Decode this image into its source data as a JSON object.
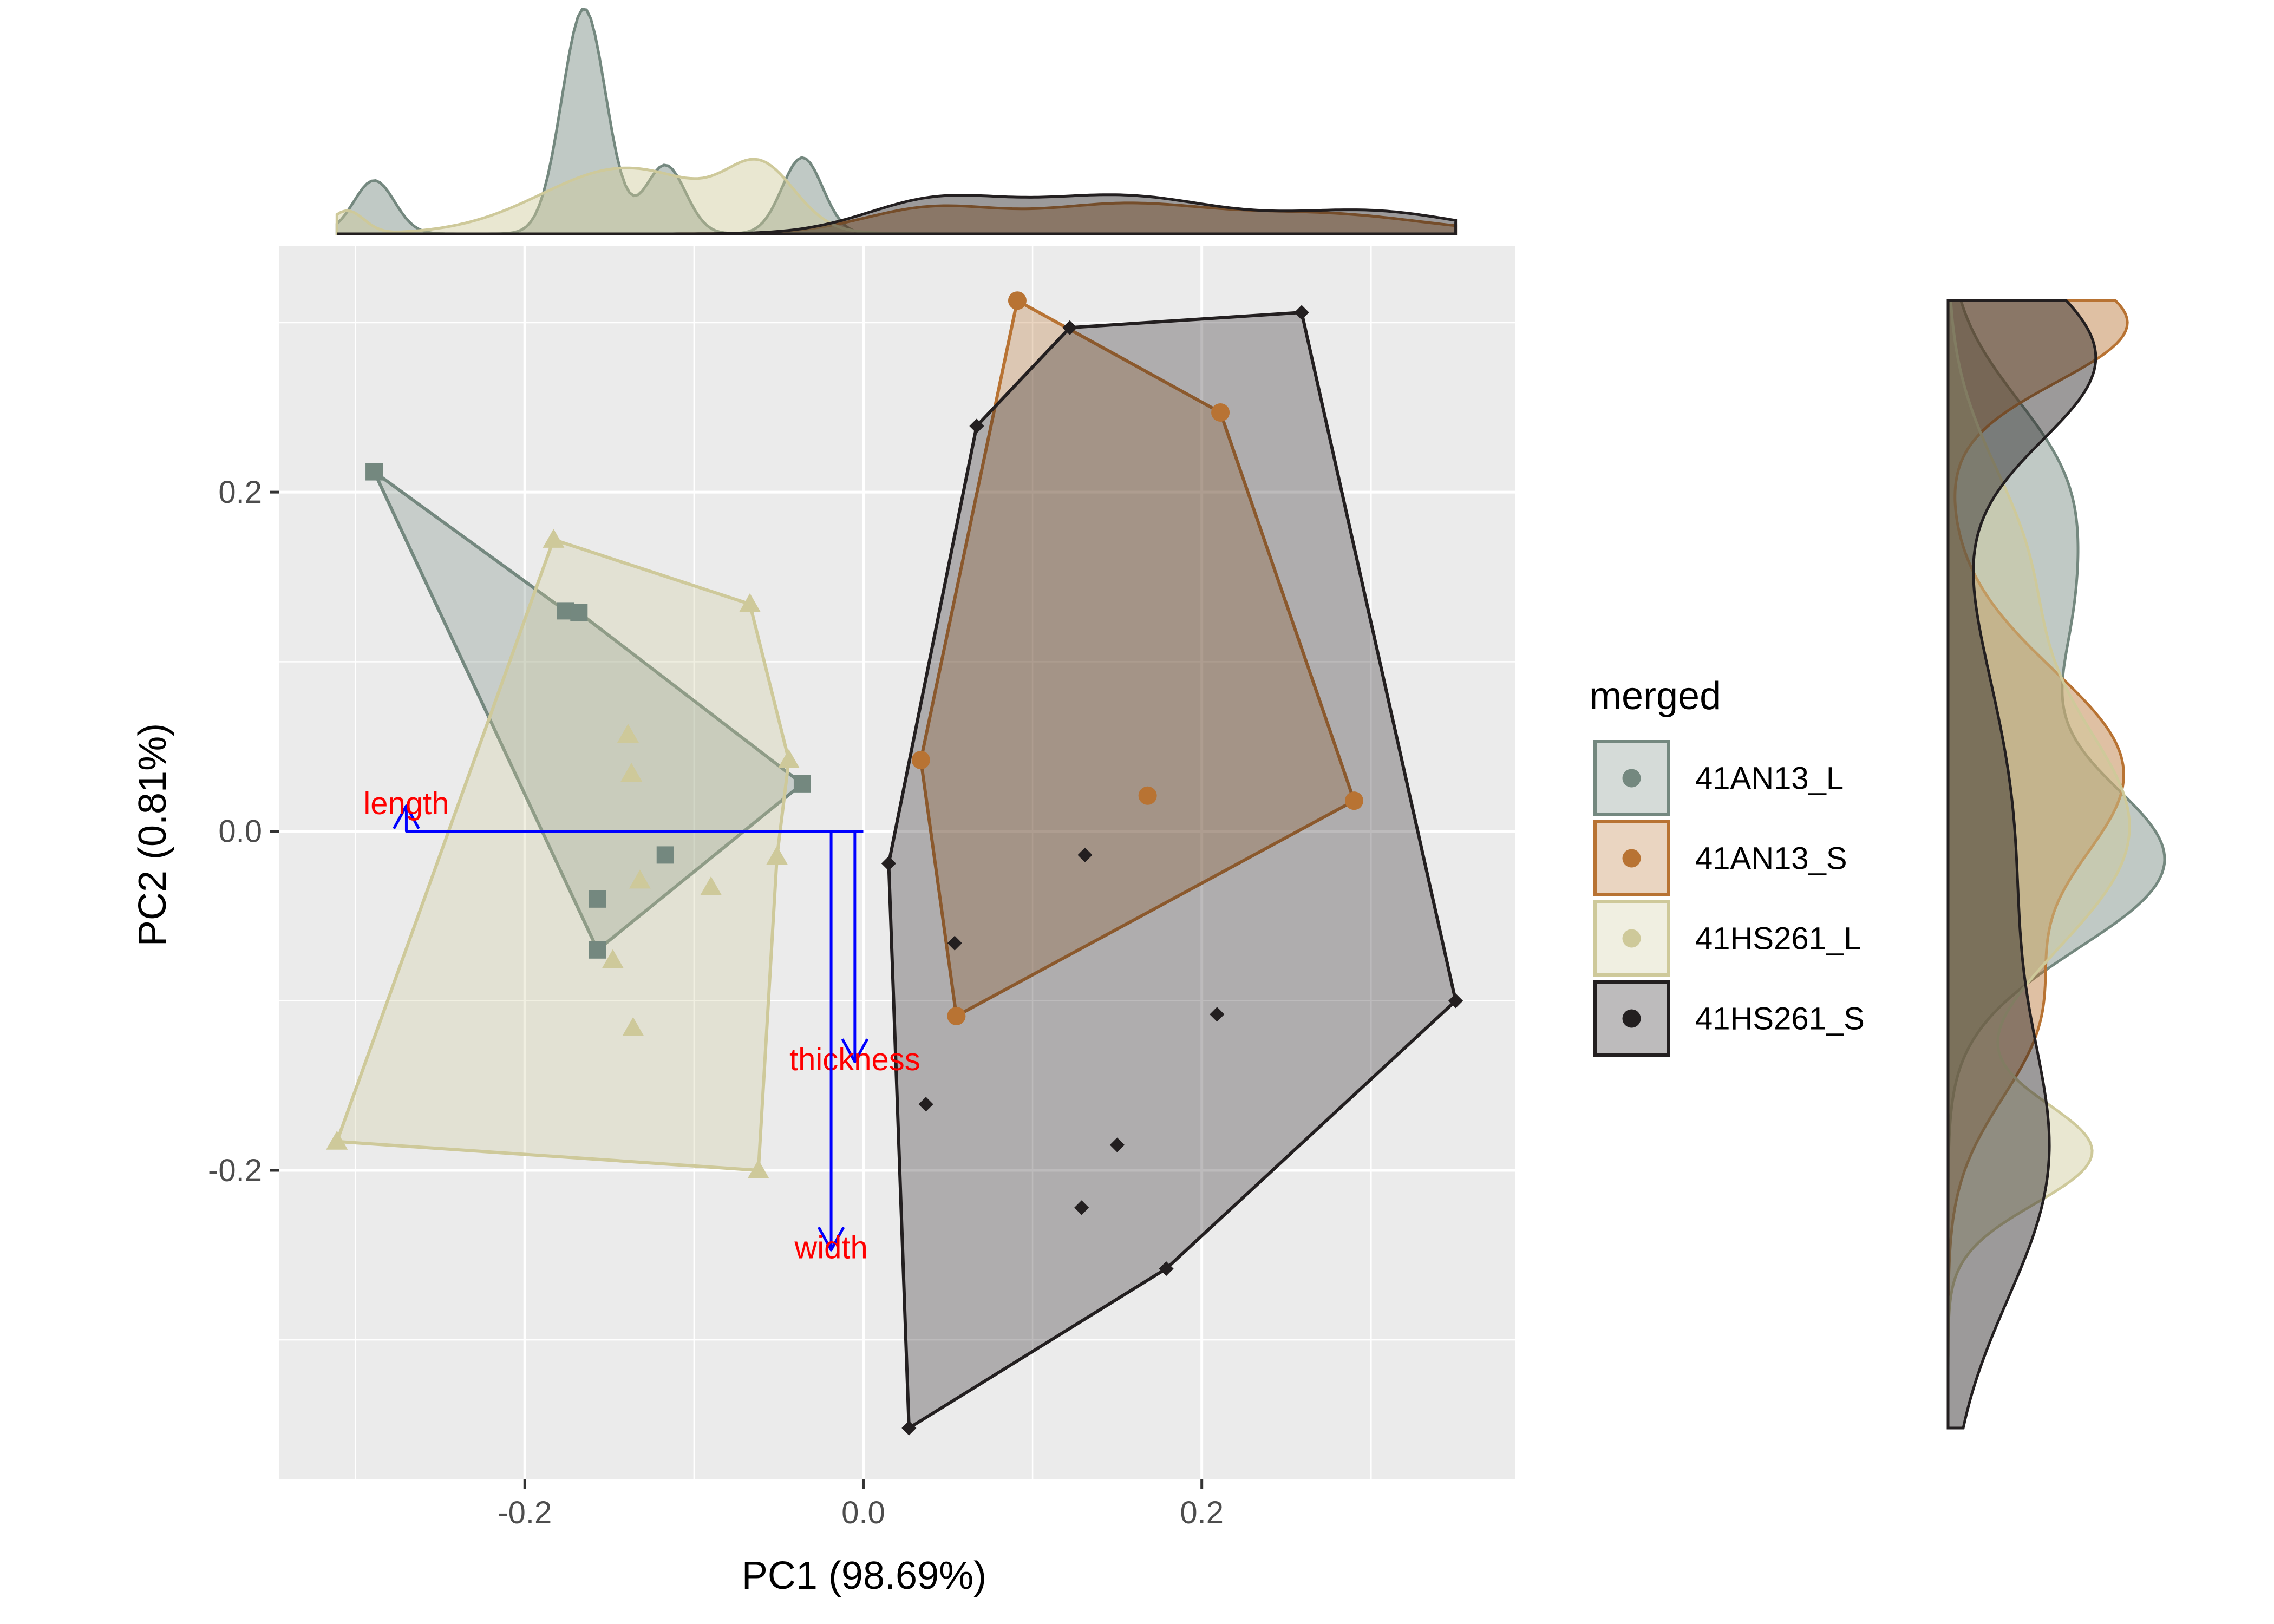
{
  "chart_data": {
    "type": "scatter",
    "subtype": "PCA biplot with convex hulls and marginal density plots",
    "xlabel": "PC1 (98.69%)",
    "ylabel": "PC2 (0.81%)",
    "xlim": [
      -0.345,
      0.385
    ],
    "ylim": [
      -0.382,
      0.345
    ],
    "xticks": [
      -0.2,
      0.0,
      0.2
    ],
    "xtick_labels": [
      "-0.2",
      "0.0",
      "0.2"
    ],
    "yticks": [
      -0.2,
      0.0,
      0.2
    ],
    "ytick_labels": [
      "-0.2",
      "0.0",
      "0.2"
    ],
    "grid": true,
    "legend": {
      "title": "merged",
      "position": "right",
      "entries": [
        "41AN13_L",
        "41AN13_S",
        "41HS261_L",
        "41HS261_S"
      ]
    },
    "series": [
      {
        "name": "41AN13_L",
        "color": "#74887f",
        "marker": "square",
        "points": [
          [
            -0.289,
            0.212
          ],
          [
            -0.176,
            0.13
          ],
          [
            -0.168,
            0.129
          ],
          [
            -0.036,
            0.028
          ],
          [
            -0.117,
            -0.014
          ],
          [
            -0.157,
            -0.04
          ],
          [
            -0.157,
            -0.07
          ]
        ],
        "hull": [
          [
            -0.289,
            0.212
          ],
          [
            -0.176,
            0.13
          ],
          [
            -0.168,
            0.129
          ],
          [
            -0.036,
            0.028
          ],
          [
            -0.157,
            -0.07
          ]
        ]
      },
      {
        "name": "41AN13_S",
        "color": "#b87333",
        "marker": "circle",
        "points": [
          [
            0.091,
            0.313
          ],
          [
            0.211,
            0.247
          ],
          [
            0.29,
            0.018
          ],
          [
            0.168,
            0.021
          ],
          [
            0.034,
            0.042
          ],
          [
            0.055,
            -0.109
          ]
        ],
        "hull": [
          [
            0.091,
            0.313
          ],
          [
            0.211,
            0.247
          ],
          [
            0.29,
            0.018
          ],
          [
            0.055,
            -0.109
          ],
          [
            0.034,
            0.042
          ]
        ]
      },
      {
        "name": "41HS261_L",
        "color": "#cec99a",
        "marker": "triangle",
        "points": [
          [
            -0.183,
            0.172
          ],
          [
            -0.067,
            0.134
          ],
          [
            -0.044,
            0.042
          ],
          [
            -0.139,
            0.057
          ],
          [
            -0.137,
            0.034
          ],
          [
            -0.051,
            -0.015
          ],
          [
            -0.09,
            -0.033
          ],
          [
            -0.132,
            -0.029
          ],
          [
            -0.148,
            -0.076
          ],
          [
            -0.136,
            -0.116
          ],
          [
            -0.311,
            -0.183
          ],
          [
            -0.062,
            -0.2
          ]
        ],
        "hull": [
          [
            -0.183,
            0.172
          ],
          [
            -0.067,
            0.134
          ],
          [
            -0.044,
            0.042
          ],
          [
            -0.051,
            -0.015
          ],
          [
            -0.062,
            -0.2
          ],
          [
            -0.311,
            -0.183
          ]
        ]
      },
      {
        "name": "41HS261_S",
        "color": "#231f20",
        "marker": "diamond",
        "points": [
          [
            0.259,
            0.306
          ],
          [
            0.122,
            0.297
          ],
          [
            0.067,
            0.239
          ],
          [
            0.015,
            -0.019
          ],
          [
            0.131,
            -0.014
          ],
          [
            0.054,
            -0.066
          ],
          [
            0.209,
            -0.108
          ],
          [
            0.35,
            -0.1
          ],
          [
            0.037,
            -0.161
          ],
          [
            0.15,
            -0.185
          ],
          [
            0.129,
            -0.222
          ],
          [
            0.179,
            -0.258
          ],
          [
            0.027,
            -0.352
          ]
        ],
        "hull": [
          [
            0.259,
            0.306
          ],
          [
            0.35,
            -0.1
          ],
          [
            0.179,
            -0.258
          ],
          [
            0.027,
            -0.352
          ],
          [
            0.015,
            -0.019
          ],
          [
            0.067,
            0.239
          ],
          [
            0.122,
            0.297
          ]
        ]
      }
    ],
    "loadings": {
      "color": "#0000ff",
      "label_color": "#ff0000",
      "vectors": [
        {
          "name": "length",
          "x": -0.27,
          "y": 0.015
        },
        {
          "name": "thickness",
          "x": -0.005,
          "y": -0.136
        },
        {
          "name": "width",
          "x": -0.019,
          "y": -0.247
        }
      ]
    },
    "marginal_density_top": {
      "axis": "PC1",
      "range": [
        -0.311,
        0.35
      ],
      "series": [
        {
          "name": "41AN13_L",
          "components": [
            [
              -0.289,
              0.012,
              0.14
            ],
            [
              -0.165,
              0.013,
              0.64
            ],
            [
              -0.117,
              0.012,
              0.18
            ],
            [
              -0.036,
              0.012,
              0.2
            ]
          ]
        },
        {
          "name": "41AN13_S",
          "components": [
            [
              0.04,
              0.04,
              0.22
            ],
            [
              0.15,
              0.05,
              0.3
            ],
            [
              0.27,
              0.06,
              0.26
            ]
          ]
        },
        {
          "name": "41HS261_L",
          "components": [
            [
              -0.305,
              0.01,
              0.05
            ],
            [
              -0.14,
              0.05,
              0.72
            ],
            [
              -0.06,
              0.02,
              0.24
            ]
          ]
        },
        {
          "name": "41HS261_S",
          "components": [
            [
              0.04,
              0.04,
              0.26
            ],
            [
              0.15,
              0.06,
              0.5
            ],
            [
              0.3,
              0.05,
              0.24
            ]
          ]
        }
      ]
    },
    "marginal_density_right": {
      "axis": "PC2",
      "range": [
        -0.352,
        0.313
      ],
      "series": [
        {
          "name": "41AN13_L",
          "components": [
            [
              0.215,
              0.05,
              0.2
            ],
            [
              0.12,
              0.06,
              0.3
            ],
            [
              -0.02,
              0.05,
              0.5
            ]
          ]
        },
        {
          "name": "41AN13_S",
          "components": [
            [
              0.3,
              0.035,
              0.3
            ],
            [
              0.035,
              0.06,
              0.5
            ],
            [
              -0.11,
              0.05,
              0.2
            ]
          ]
        },
        {
          "name": "41HS261_L",
          "components": [
            [
              0.16,
              0.06,
              0.2
            ],
            [
              0.0,
              0.07,
              0.6
            ],
            [
              -0.19,
              0.03,
              0.2
            ]
          ]
        },
        {
          "name": "41HS261_S",
          "components": [
            [
              0.28,
              0.05,
              0.35
            ],
            [
              0.0,
              0.1,
              0.3
            ],
            [
              -0.2,
              0.08,
              0.35
            ]
          ]
        }
      ]
    }
  }
}
